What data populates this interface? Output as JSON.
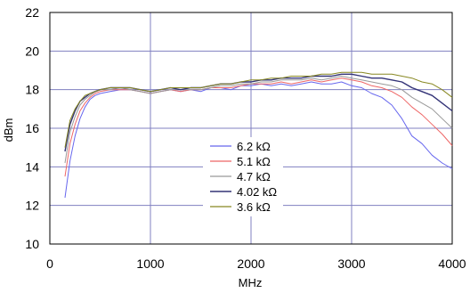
{
  "chart_data": {
    "type": "line",
    "title": "",
    "xlabel": "MHz",
    "ylabel": "dBm",
    "xlim": [
      0,
      4000
    ],
    "ylim": [
      10,
      22
    ],
    "xticks": [
      0,
      1000,
      2000,
      3000,
      4000
    ],
    "yticks": [
      10,
      12,
      14,
      16,
      18,
      20,
      22
    ],
    "xtick_labels": [
      "0",
      "1000",
      "2000",
      "3000",
      "4000"
    ],
    "ytick_labels": [
      "10",
      "12",
      "14",
      "16",
      "18",
      "20",
      "22"
    ],
    "grid": true,
    "legend_position": "lower-center",
    "series": [
      {
        "name": "6.2 kΩ",
        "color": "#6666ee",
        "x": [
          150,
          200,
          250,
          300,
          350,
          400,
          450,
          500,
          600,
          700,
          800,
          900,
          1000,
          1100,
          1200,
          1300,
          1400,
          1500,
          1600,
          1700,
          1800,
          1900,
          2000,
          2100,
          2200,
          2300,
          2400,
          2500,
          2600,
          2700,
          2800,
          2900,
          3000,
          3100,
          3200,
          3300,
          3400,
          3500,
          3600,
          3700,
          3800,
          3900,
          4000
        ],
        "y": [
          12.4,
          14.3,
          15.6,
          16.5,
          17.1,
          17.5,
          17.7,
          17.8,
          17.9,
          18.0,
          18.0,
          17.9,
          17.8,
          17.9,
          18.0,
          17.9,
          18.0,
          17.9,
          18.1,
          18.1,
          18.0,
          18.2,
          18.2,
          18.3,
          18.2,
          18.3,
          18.2,
          18.3,
          18.4,
          18.3,
          18.3,
          18.4,
          18.2,
          18.1,
          17.8,
          17.6,
          17.2,
          16.5,
          15.6,
          15.2,
          14.6,
          14.2,
          13.9
        ]
      },
      {
        "name": "5.1 kΩ",
        "color": "#ee6666",
        "x": [
          150,
          200,
          250,
          300,
          350,
          400,
          450,
          500,
          600,
          700,
          800,
          900,
          1000,
          1100,
          1200,
          1300,
          1400,
          1500,
          1600,
          1700,
          1800,
          1900,
          2000,
          2100,
          2200,
          2300,
          2400,
          2500,
          2600,
          2700,
          2800,
          2900,
          3000,
          3100,
          3200,
          3300,
          3400,
          3500,
          3600,
          3700,
          3800,
          3900,
          4000
        ],
        "y": [
          13.5,
          15.2,
          16.2,
          16.9,
          17.3,
          17.6,
          17.8,
          17.9,
          18.0,
          18.0,
          18.0,
          17.9,
          17.8,
          17.9,
          18.0,
          17.9,
          18.0,
          18.0,
          18.1,
          18.1,
          18.1,
          18.2,
          18.3,
          18.3,
          18.3,
          18.4,
          18.3,
          18.4,
          18.5,
          18.4,
          18.5,
          18.6,
          18.5,
          18.4,
          18.2,
          18.1,
          17.9,
          17.6,
          17.1,
          16.7,
          16.2,
          15.7,
          15.1
        ]
      },
      {
        "name": "4.7 kΩ",
        "color": "#999999",
        "x": [
          150,
          200,
          250,
          300,
          350,
          400,
          450,
          500,
          600,
          700,
          800,
          900,
          1000,
          1100,
          1200,
          1300,
          1400,
          1500,
          1600,
          1700,
          1800,
          1900,
          2000,
          2100,
          2200,
          2300,
          2400,
          2500,
          2600,
          2700,
          2800,
          2900,
          3000,
          3100,
          3200,
          3300,
          3400,
          3500,
          3600,
          3700,
          3800,
          3900,
          4000
        ],
        "y": [
          14.2,
          15.8,
          16.6,
          17.2,
          17.5,
          17.7,
          17.9,
          18.0,
          18.0,
          18.1,
          18.0,
          17.9,
          17.8,
          17.9,
          18.0,
          18.0,
          18.0,
          18.0,
          18.1,
          18.2,
          18.2,
          18.3,
          18.3,
          18.4,
          18.4,
          18.5,
          18.5,
          18.5,
          18.6,
          18.5,
          18.6,
          18.7,
          18.6,
          18.5,
          18.4,
          18.3,
          18.2,
          18.0,
          17.6,
          17.3,
          17.0,
          16.5,
          16.0
        ]
      },
      {
        "name": "4.02 kΩ",
        "color": "#333377",
        "x": [
          150,
          200,
          250,
          300,
          350,
          400,
          450,
          500,
          600,
          700,
          800,
          900,
          1000,
          1100,
          1200,
          1300,
          1400,
          1500,
          1600,
          1700,
          1800,
          1900,
          2000,
          2100,
          2200,
          2300,
          2400,
          2500,
          2600,
          2700,
          2800,
          2900,
          3000,
          3100,
          3200,
          3300,
          3400,
          3500,
          3600,
          3700,
          3800,
          3900,
          4000
        ],
        "y": [
          14.8,
          16.2,
          16.9,
          17.4,
          17.6,
          17.8,
          17.9,
          18.0,
          18.1,
          18.1,
          18.1,
          18.0,
          17.9,
          18.0,
          18.1,
          18.0,
          18.1,
          18.1,
          18.2,
          18.3,
          18.3,
          18.4,
          18.4,
          18.5,
          18.5,
          18.6,
          18.6,
          18.6,
          18.7,
          18.7,
          18.7,
          18.8,
          18.8,
          18.7,
          18.6,
          18.6,
          18.5,
          18.4,
          18.1,
          17.9,
          17.7,
          17.3,
          16.9
        ]
      },
      {
        "name": "3.6 kΩ",
        "color": "#888822",
        "x": [
          150,
          200,
          250,
          300,
          350,
          400,
          450,
          500,
          600,
          700,
          800,
          900,
          1000,
          1100,
          1200,
          1300,
          1400,
          1500,
          1600,
          1700,
          1800,
          1900,
          2000,
          2100,
          2200,
          2300,
          2400,
          2500,
          2600,
          2700,
          2800,
          2900,
          3000,
          3100,
          3200,
          3300,
          3400,
          3500,
          3600,
          3700,
          3800,
          3900,
          4000
        ],
        "y": [
          15.0,
          16.4,
          17.0,
          17.4,
          17.7,
          17.8,
          17.9,
          18.0,
          18.1,
          18.1,
          18.1,
          18.0,
          17.9,
          18.0,
          18.1,
          18.1,
          18.1,
          18.1,
          18.2,
          18.3,
          18.3,
          18.4,
          18.5,
          18.5,
          18.6,
          18.6,
          18.7,
          18.7,
          18.7,
          18.8,
          18.8,
          18.9,
          18.9,
          18.9,
          18.8,
          18.8,
          18.8,
          18.7,
          18.6,
          18.4,
          18.3,
          18.0,
          17.6
        ]
      }
    ]
  }
}
